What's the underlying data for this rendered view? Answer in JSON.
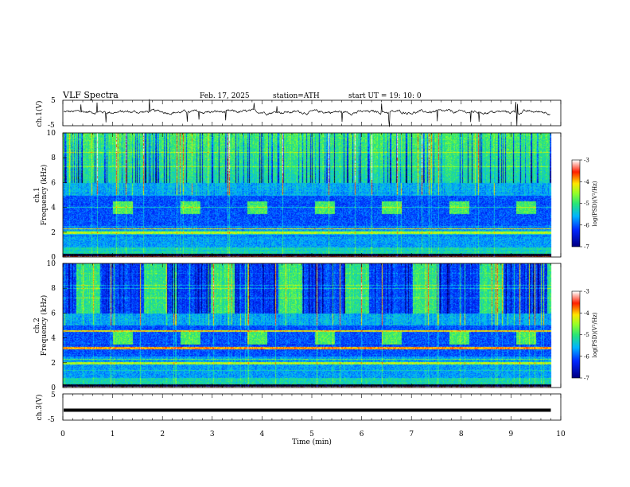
{
  "header": {
    "title": "VLF  Spectra",
    "date": "Feb. 17, 2025",
    "station": "station=ATH",
    "start": "start  UT  =   19: 10: 0"
  },
  "chart_data": [
    {
      "type": "line",
      "name": "waveform-ch1",
      "ylabel": "ch.1(V)",
      "ylim": [
        -5,
        5
      ],
      "yticks": [
        "5",
        "-5"
      ],
      "x_range_min": [
        0,
        9.8
      ],
      "description_level": 0.4
    },
    {
      "type": "heatmap",
      "name": "spectrogram-ch1",
      "ylabel": "ch.1\nFrequency (kHz)",
      "ylabel_lines": [
        "ch.1",
        "Frequency  (kHz)"
      ],
      "ylim": [
        0,
        10
      ],
      "yticks": [
        "0",
        "2",
        "4",
        "6",
        "8",
        "10"
      ],
      "colorbar": {
        "label": "log(PSD)(V²/Hz)",
        "ticks": [
          "-3",
          "-4",
          "-5",
          "-6",
          "-7"
        ],
        "range": [
          -7,
          -3
        ]
      },
      "bursts_min": [
        1.0,
        2.35,
        3.7,
        5.05,
        6.4,
        7.75,
        9.1
      ],
      "burst_band_khz": [
        3.5,
        4.5
      ]
    },
    {
      "type": "heatmap",
      "name": "spectrogram-ch2",
      "ylabel_lines": [
        "ch.2",
        "Frequency  (kHz)"
      ],
      "ylim": [
        0,
        10
      ],
      "yticks": [
        "0",
        "2",
        "4",
        "6",
        "8",
        "10"
      ],
      "colorbar": {
        "label": "log(PSD)(V²/Hz)",
        "ticks": [
          "-3",
          "-4",
          "-5",
          "-6",
          "-7"
        ],
        "range": [
          -7,
          -3
        ]
      }
    },
    {
      "type": "line",
      "name": "waveform-ch3",
      "ylabel": "ch.3(V)",
      "ylim": [
        -5,
        5
      ],
      "yticks": [
        "5",
        "-5"
      ],
      "level": -1.2
    }
  ],
  "xaxis": {
    "label": "Time  (min)",
    "ticks": [
      "0",
      "1",
      "2",
      "3",
      "4",
      "5",
      "6",
      "7",
      "8",
      "9",
      "10"
    ],
    "range": [
      0,
      10
    ],
    "data_end": 9.8
  }
}
